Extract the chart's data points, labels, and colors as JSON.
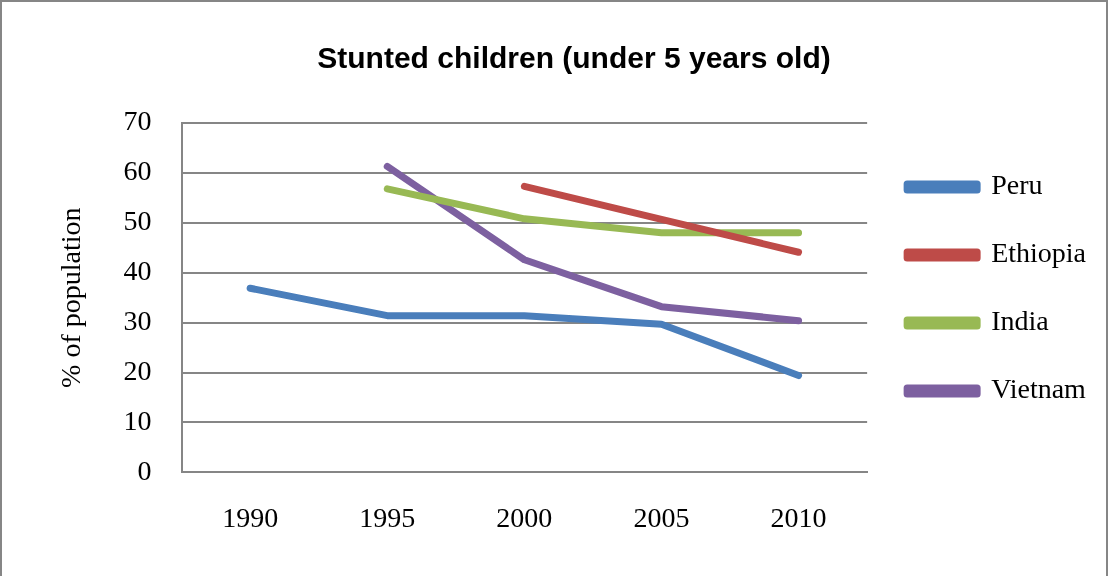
{
  "chart_data": {
    "type": "line",
    "title": "Stunted children (under 5 years old)",
    "ylabel": "% of population",
    "categories": [
      "1990",
      "1995",
      "2000",
      "2005",
      "2010"
    ],
    "series": [
      {
        "name": "Peru",
        "color": "#4a7ebb",
        "values": [
          36.9,
          31.4,
          31.4,
          29.7,
          19.4
        ]
      },
      {
        "name": "Ethiopia",
        "color": "#be4b48",
        "values": [
          null,
          null,
          57.3,
          50.7,
          44.1
        ]
      },
      {
        "name": "India",
        "color": "#98b954",
        "values": [
          null,
          56.8,
          50.8,
          48.0,
          48.0
        ]
      },
      {
        "name": "Vietnam",
        "color": "#7d60a0",
        "values": [
          null,
          61.3,
          42.6,
          33.2,
          30.4
        ]
      }
    ],
    "ylim": [
      0,
      70
    ],
    "yticks": [
      0,
      10,
      20,
      30,
      40,
      50,
      60,
      70
    ],
    "grid": "y",
    "legend": "right",
    "marker": "none",
    "line_style": "solid"
  }
}
